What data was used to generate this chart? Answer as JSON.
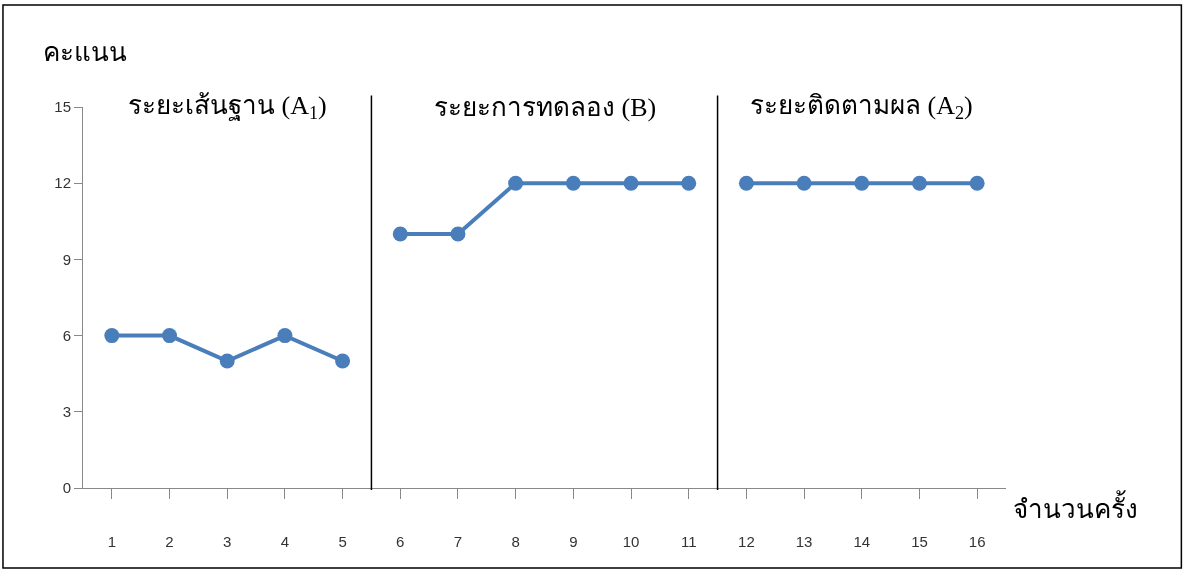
{
  "chart_data": {
    "type": "line",
    "xlabel": "จำนวนครั้ง",
    "ylabel": "คะแนน",
    "x": [
      1,
      2,
      3,
      4,
      5,
      6,
      7,
      8,
      9,
      10,
      11,
      12,
      13,
      14,
      15,
      16
    ],
    "series": [
      {
        "color": "#4a7ebb",
        "values": [
          6,
          6,
          5,
          6,
          5,
          null,
          null,
          null,
          null,
          null,
          null,
          null,
          null,
          null,
          null,
          null
        ]
      },
      {
        "color": "#4a7ebb",
        "values": [
          null,
          null,
          null,
          null,
          null,
          10,
          10,
          12,
          12,
          12,
          12,
          null,
          null,
          null,
          null,
          null
        ]
      },
      {
        "color": "#4a7ebb",
        "values": [
          null,
          null,
          null,
          null,
          null,
          null,
          null,
          null,
          null,
          null,
          null,
          12,
          12,
          12,
          12,
          12
        ]
      }
    ],
    "xlim": [
      0.5,
      16.5
    ],
    "xticks": [
      1,
      2,
      3,
      4,
      5,
      6,
      7,
      8,
      9,
      10,
      11,
      12,
      13,
      14,
      15,
      16
    ],
    "ylim": [
      0,
      15
    ],
    "yticks": [
      0,
      3,
      6,
      9,
      12,
      15
    ],
    "ref_lines": [
      {
        "axis": "x",
        "value": 5.5,
        "color": "#000000"
      },
      {
        "axis": "x",
        "value": 11.5,
        "color": "#000000"
      }
    ],
    "annotations": [
      "ระยะเส้นฐาน (A$_{1}$)",
      "ระยะการทดลอง (B)",
      "ระยะติดตามผล (A$_{2}$)"
    ],
    "marker": "circle",
    "line_style": "solid"
  }
}
